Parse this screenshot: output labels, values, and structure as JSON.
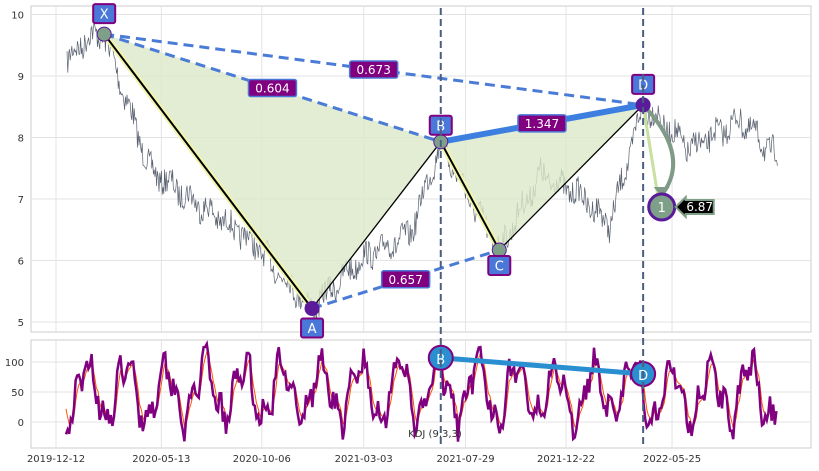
{
  "chart_data": {
    "type": "line",
    "price_panel": {
      "ylim": [
        4.8,
        10.1
      ],
      "yticks": [
        "5",
        "6",
        "7",
        "8",
        "9",
        "10"
      ],
      "grid": true,
      "pattern_points": [
        {
          "label": "X",
          "date": "2020-02-20",
          "value": 9.68
        },
        {
          "label": "A",
          "date": "2020-12-18",
          "value": 5.22
        },
        {
          "label": "B",
          "date": "2021-06-23",
          "value": 7.93
        },
        {
          "label": "C",
          "date": "2021-09-16",
          "value": 6.17
        },
        {
          "label": "D",
          "date": "2022-04-13",
          "value": 8.53
        }
      ],
      "ratios": [
        {
          "text": "0.604",
          "value": 0.604
        },
        {
          "text": "0.673",
          "value": 0.673
        },
        {
          "text": "1.347",
          "value": 1.347
        },
        {
          "text": "0.657",
          "value": 0.657
        }
      ],
      "target": {
        "label": "1",
        "value_text": "6.87",
        "value": 6.87,
        "date": "2022-05-10"
      },
      "vlines": [
        "2021-06-23",
        "2022-04-13"
      ]
    },
    "kdj_panel": {
      "label": "KDJ (9,3,3)",
      "ylim": [
        -40,
        140
      ],
      "yticks": [
        "0",
        "50",
        "100"
      ],
      "points": [
        {
          "label": "B",
          "date": "2021-06-23",
          "value": 107
        },
        {
          "label": "D",
          "date": "2022-04-13",
          "value": 80
        }
      ]
    },
    "x_ticks": [
      "2019-12-12",
      "2020-05-13",
      "2020-10-06",
      "2021-03-03",
      "2021-07-29",
      "2021-12-22",
      "2022-05-25"
    ],
    "colors": {
      "price": "#5a6270",
      "fill": "#dce9c8",
      "dash": "#4a7bd6",
      "bc_line": "#3d7fe0",
      "label_bg": "#4a78d8",
      "ratio_bg": "#800080",
      "point": "#5a1a9a",
      "point_grey": "#7fa088",
      "kdj_k": "#800080",
      "kdj_d": "#ff5500",
      "kdj_line": "#2a8fd0",
      "vline": "#4a5f80"
    }
  }
}
